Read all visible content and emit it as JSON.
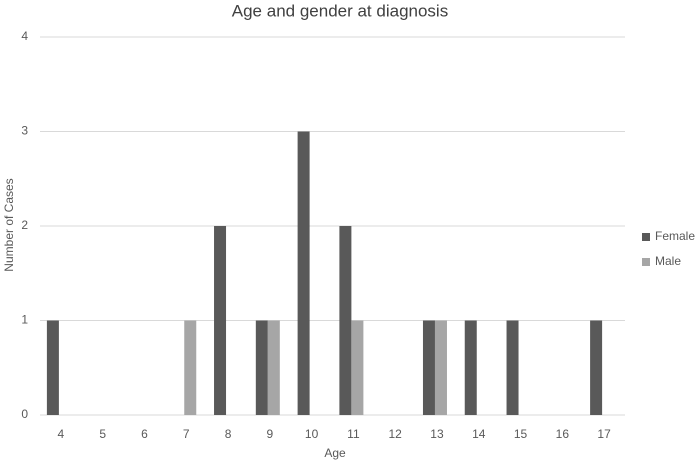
{
  "chart_data": {
    "type": "bar",
    "title": "Age and gender at diagnosis",
    "x_label": "Age",
    "y_label": "Number of Cases",
    "categories": [
      "4",
      "5",
      "6",
      "7",
      "8",
      "9",
      "10",
      "11",
      "12",
      "13",
      "14",
      "15",
      "16",
      "17"
    ],
    "series": [
      {
        "name": "Female",
        "color": "#595959",
        "values": [
          1,
          0,
          0,
          0,
          2,
          1,
          3,
          2,
          0,
          1,
          1,
          1,
          0,
          1
        ]
      },
      {
        "name": "Male",
        "color": "#a6a6a6",
        "values": [
          0,
          0,
          0,
          1,
          0,
          1,
          0,
          1,
          0,
          1,
          0,
          0,
          0,
          0
        ]
      }
    ],
    "ylim": [
      0,
      4
    ],
    "yticks": [
      0,
      1,
      2,
      3,
      4
    ],
    "grid": true,
    "legend": "right"
  }
}
